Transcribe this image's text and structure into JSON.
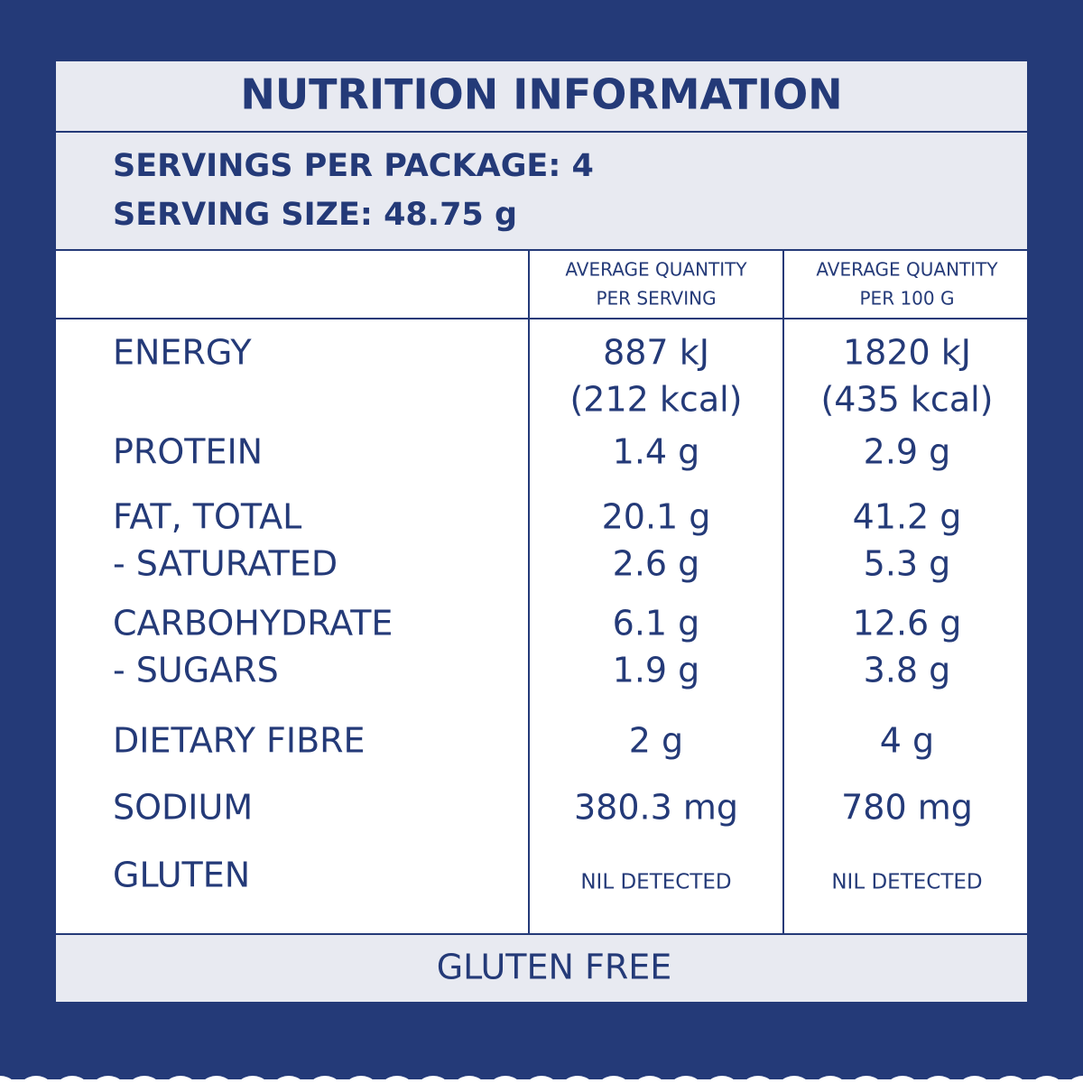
{
  "title": "NUTRITION INFORMATION",
  "servings": [
    "SERVINGS PER PACKAGE: 4",
    "SERVING SIZE: 48.75 g"
  ],
  "columns": [
    [
      "AVERAGE QUANTITY",
      "PER SERVING"
    ],
    [
      "AVERAGE QUANTITY",
      "PER 100 G"
    ]
  ],
  "rows": [
    {
      "name": [
        "ENERGY"
      ],
      "per_serving": [
        "887 kJ",
        "(212 kcal)"
      ],
      "per_100g": [
        "1820 kJ",
        "(435 kcal)"
      ]
    },
    {
      "name": [
        "PROTEIN"
      ],
      "per_serving": [
        "1.4 g"
      ],
      "per_100g": [
        "2.9 g"
      ]
    },
    {
      "name": [
        "FAT, TOTAL",
        "- SATURATED"
      ],
      "per_serving": [
        "20.1 g",
        "2.6 g"
      ],
      "per_100g": [
        "41.2 g",
        "5.3 g"
      ]
    },
    {
      "name": [
        "CARBOHYDRATE",
        "- SUGARS"
      ],
      "per_serving": [
        "6.1 g",
        "1.9 g"
      ],
      "per_100g": [
        "12.6 g",
        "3.8 g"
      ]
    },
    {
      "name": [
        "DIETARY FIBRE"
      ],
      "per_serving": [
        "2 g"
      ],
      "per_100g": [
        "4 g"
      ]
    },
    {
      "name": [
        "SODIUM"
      ],
      "per_serving": [
        "380.3 mg"
      ],
      "per_100g": [
        "780 mg"
      ]
    },
    {
      "name": [
        "GLUTEN"
      ],
      "per_serving": [
        "NIL DETECTED"
      ],
      "per_100g": [
        "NIL DETECTED"
      ]
    }
  ],
  "footer": "GLUTEN FREE"
}
